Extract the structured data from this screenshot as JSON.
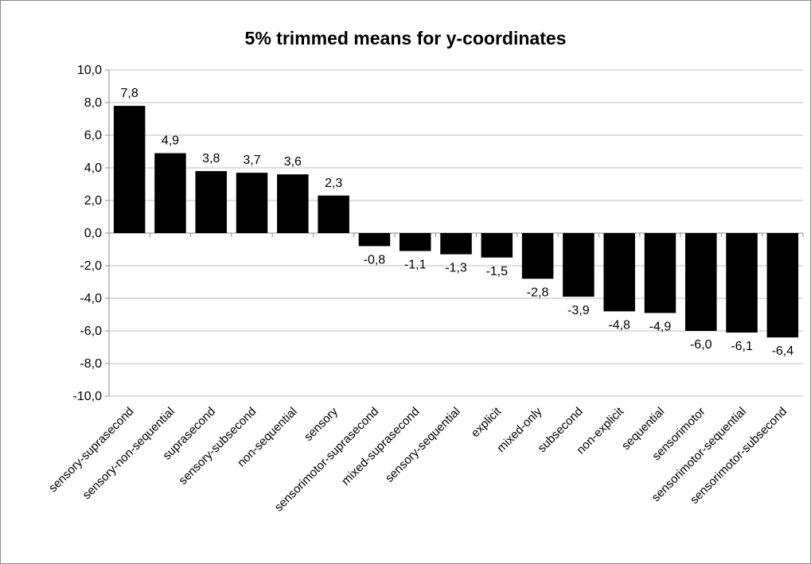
{
  "chart_data": {
    "type": "bar",
    "title": "5% trimmed means for y-coordinates",
    "xlabel": "",
    "ylabel": "",
    "ylim": [
      -10,
      10
    ],
    "yticks": [
      10,
      8,
      6,
      4,
      2,
      0,
      -2,
      -4,
      -6,
      -8,
      -10
    ],
    "ytick_labels": [
      "10,0",
      "8,0",
      "6,0",
      "4,0",
      "2,0",
      "0,0",
      "-2,0",
      "-4,0",
      "-6,0",
      "-8,0",
      "-10,0"
    ],
    "grid": true,
    "bar_color": "#000000",
    "categories": [
      "sensory-suprasecond",
      "sensory-non-sequential",
      "suprasecond",
      "sensory-subsecond",
      "non-sequential",
      "sensory",
      "sensorimotor-suprasecond",
      "mixed-suprasecond",
      "sensory-sequential",
      "explicit",
      "mixed-only",
      "subsecond",
      "non-explicit",
      "sequential",
      "sensorimotor",
      "sensorimotor-sequential",
      "sensorimotor-subsecond"
    ],
    "values": [
      7.8,
      4.9,
      3.8,
      3.7,
      3.6,
      2.3,
      -0.8,
      -1.1,
      -1.3,
      -1.5,
      -2.8,
      -3.9,
      -4.8,
      -4.9,
      -6.0,
      -6.1,
      -6.4
    ],
    "data_labels": [
      "7,8",
      "4,9",
      "3,8",
      "3,7",
      "3,6",
      "2,3",
      "-0,8",
      "-1,1",
      "-1,3",
      "-1,5",
      "-2,8",
      "-3,9",
      "-4,8",
      "-4,9",
      "-6,0",
      "-6,1",
      "-6,4"
    ]
  }
}
